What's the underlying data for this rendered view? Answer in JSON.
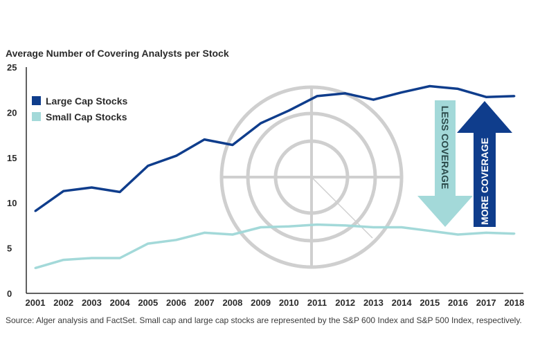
{
  "chart_data": {
    "type": "line",
    "title": "Average Number of Covering Analysts per Stock",
    "categories": [
      "2001",
      "2002",
      "2003",
      "2004",
      "2005",
      "2006",
      "2007",
      "2008",
      "2009",
      "2010",
      "2011",
      "2012",
      "2013",
      "2014",
      "2015",
      "2016",
      "2017",
      "2018"
    ],
    "series": [
      {
        "name": "Large Cap Stocks",
        "color": "#0f3d8c",
        "values": [
          9.1,
          11.3,
          11.7,
          11.2,
          14.1,
          15.2,
          17.0,
          16.4,
          18.8,
          20.2,
          21.8,
          22.1,
          21.4,
          22.2,
          22.9,
          22.6,
          21.7,
          21.8
        ]
      },
      {
        "name": "Small Cap Stocks",
        "color": "#a3d9d9",
        "values": [
          2.8,
          3.7,
          3.9,
          3.9,
          5.5,
          5.9,
          6.7,
          6.5,
          7.3,
          7.4,
          7.6,
          7.5,
          7.3,
          7.3,
          6.9,
          6.5,
          6.7,
          6.6
        ]
      }
    ],
    "yticks": [
      "0",
      "5",
      "10",
      "15",
      "20",
      "25"
    ],
    "ylim": [
      0,
      25
    ],
    "xlabel": "",
    "ylabel": "",
    "grid": false,
    "legend_position": "top-left",
    "annotations": {
      "less_coverage": {
        "label": "LESS COVERAGE",
        "color": "#a3d9d9",
        "text_color": "#2b4a4a"
      },
      "more_coverage": {
        "label": "MORE COVERAGE",
        "color": "#0f3d8c",
        "text_color": "#ffffff"
      }
    },
    "source": "Source: Alger analysis and FactSet. Small cap and large cap stocks are represented by the S&P 600 Index and S&P 500 Index, respectively."
  },
  "colors": {
    "axis": "#2b2b2b",
    "target_graphic": "#cfcfcf",
    "background": "#ffffff"
  }
}
